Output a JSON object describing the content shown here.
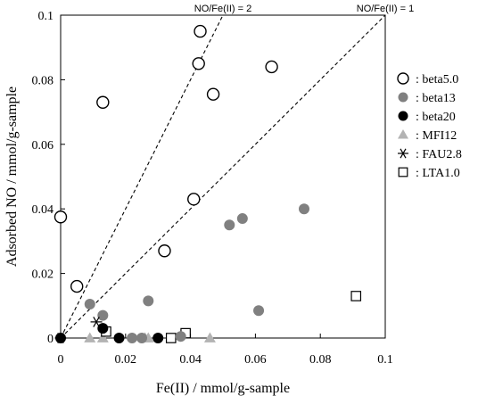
{
  "chart_data": {
    "type": "scatter",
    "xlabel": "Fe(II) / mmol/g-sample",
    "ylabel": "Adsorbed NO / mmol/g-sample",
    "xlim": [
      0,
      0.1
    ],
    "ylim": [
      0,
      0.1
    ],
    "xticks": [
      0,
      0.02,
      0.04,
      0.06,
      0.08,
      0.1
    ],
    "xtick_labels": [
      "0",
      "0.02",
      "0.04",
      "0.06",
      "0.08",
      "0.1"
    ],
    "yticks": [
      0,
      0.02,
      0.04,
      0.06,
      0.08,
      0.1
    ],
    "ytick_labels": [
      "0",
      "0.02",
      "0.04",
      "0.06",
      "0.08",
      "0.1"
    ],
    "grid": false,
    "legend_position": "right",
    "reference_lines": [
      {
        "label": "NO/Fe(II) = 2",
        "slope": 2
      },
      {
        "label": "NO/Fe(II) = 1",
        "slope": 1
      }
    ],
    "series": [
      {
        "name": ": beta5.0",
        "marker": "circle-open",
        "color": "#000000",
        "x": [
          0.0,
          0.005,
          0.013,
          0.032,
          0.041,
          0.043,
          0.0425,
          0.047,
          0.065
        ],
        "y": [
          0.0375,
          0.016,
          0.073,
          0.027,
          0.043,
          0.095,
          0.085,
          0.0755,
          0.084
        ]
      },
      {
        "name": ": beta13",
        "marker": "circle-filled",
        "color": "#808080",
        "x": [
          0.009,
          0.013,
          0.027,
          0.022,
          0.025,
          0.037,
          0.052,
          0.056,
          0.075,
          0.061
        ],
        "y": [
          0.0105,
          0.007,
          0.0115,
          0.0,
          0.0,
          0.0005,
          0.035,
          0.037,
          0.04,
          0.0085
        ]
      },
      {
        "name": ": beta20",
        "marker": "circle-filled",
        "color": "#000000",
        "x": [
          0.0,
          0.013,
          0.018,
          0.03
        ],
        "y": [
          0.0,
          0.003,
          0.0,
          0.0
        ]
      },
      {
        "name": ": MFI12",
        "marker": "triangle",
        "color": "#b3b3b3",
        "x": [
          0.009,
          0.013,
          0.026,
          0.027,
          0.046
        ],
        "y": [
          0.0,
          0.0,
          0.0,
          0.0,
          0.0
        ]
      },
      {
        "name": ": FAU2.8",
        "marker": "asterisk",
        "color": "#000000",
        "x": [
          0.0,
          0.011
        ],
        "y": [
          0.0,
          0.005
        ]
      },
      {
        "name": ": LTA1.0",
        "marker": "square-open",
        "color": "#000000",
        "x": [
          0.014,
          0.034,
          0.0385,
          0.091
        ],
        "y": [
          0.002,
          0.0,
          0.0015,
          0.013
        ]
      }
    ]
  }
}
